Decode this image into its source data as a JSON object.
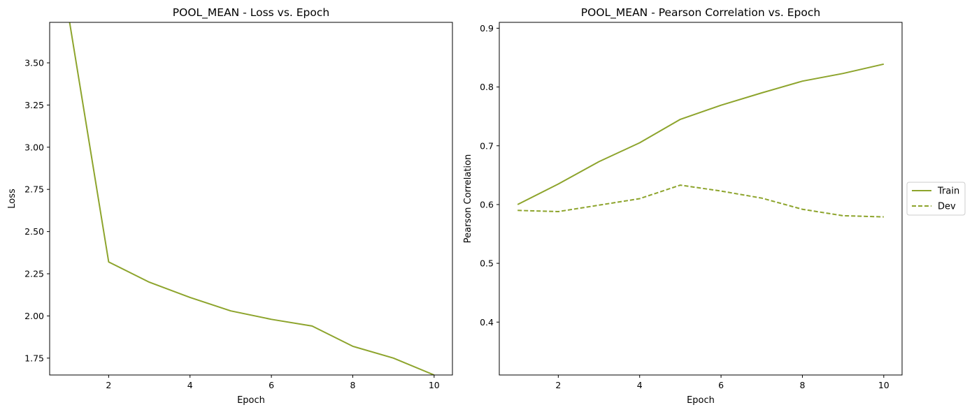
{
  "chart_data": [
    {
      "type": "line",
      "title": "POOL_MEAN - Loss vs. Epoch",
      "xlabel": "Epoch",
      "ylabel": "Loss",
      "xlim": [
        0.55,
        10.45
      ],
      "ylim": [
        1.65,
        3.74
      ],
      "xticks": [
        2,
        4,
        6,
        8,
        10
      ],
      "yticks": [
        1.75,
        2.0,
        2.25,
        2.5,
        2.75,
        3.0,
        3.25,
        3.5
      ],
      "ytick_labels": [
        "1.75",
        "2.00",
        "2.25",
        "2.50",
        "2.75",
        "3.00",
        "3.25",
        "3.50"
      ],
      "grid": false,
      "legend": "none",
      "series": [
        {
          "x": [
            1,
            2,
            3,
            4,
            5,
            6,
            7,
            8,
            9,
            10
          ],
          "values": [
            3.8,
            2.32,
            2.2,
            2.11,
            2.03,
            1.98,
            1.94,
            1.82,
            1.75,
            1.65
          ],
          "color": "#8da42c",
          "dash": "solid"
        }
      ]
    },
    {
      "type": "line",
      "title": "POOL_MEAN - Pearson Correlation vs. Epoch",
      "xlabel": "Epoch",
      "ylabel": "Pearson Correlation",
      "xlim": [
        0.55,
        10.45
      ],
      "ylim": [
        0.31,
        0.91
      ],
      "xticks": [
        2,
        4,
        6,
        8,
        10
      ],
      "yticks": [
        0.4,
        0.5,
        0.6,
        0.7,
        0.8,
        0.9
      ],
      "ytick_labels": [
        "0.4",
        "0.5",
        "0.6",
        "0.7",
        "0.8",
        "0.9"
      ],
      "grid": false,
      "legend": "outside-right",
      "series": [
        {
          "name": "Train",
          "x": [
            1,
            2,
            3,
            4,
            5,
            6,
            7,
            8,
            9,
            10
          ],
          "values": [
            0.6,
            0.635,
            0.673,
            0.705,
            0.745,
            0.769,
            0.79,
            0.81,
            0.823,
            0.839
          ],
          "color": "#8da42c",
          "dash": "solid"
        },
        {
          "name": "Dev",
          "x": [
            1,
            2,
            3,
            4,
            5,
            6,
            7,
            8,
            9,
            10
          ],
          "values": [
            0.59,
            0.588,
            0.599,
            0.61,
            0.633,
            0.623,
            0.611,
            0.592,
            0.581,
            0.579
          ],
          "color": "#8da42c",
          "dash": "dashed"
        }
      ]
    }
  ]
}
